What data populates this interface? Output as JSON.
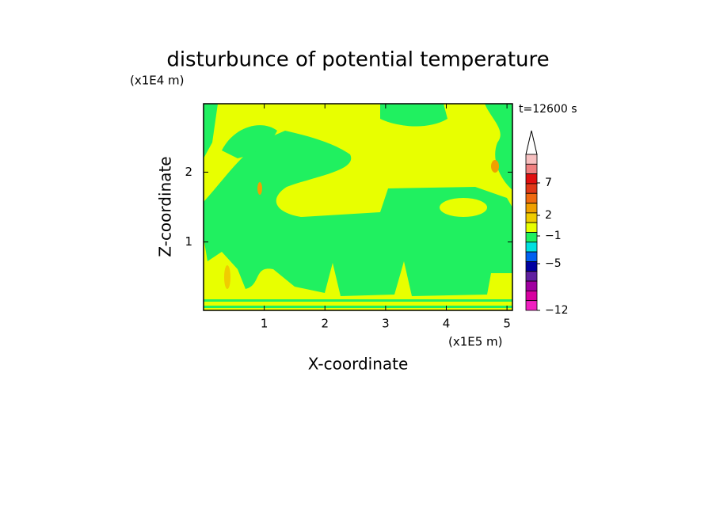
{
  "chart_data": {
    "type": "contour",
    "title": "disturbunce of potential temperature",
    "x_label": "X-coordinate",
    "y_label": "Z-coordinate",
    "x_unit": "(x1E5 m)",
    "y_unit": "(x1E4 m)",
    "time_label": "t=12600 s",
    "xlim": [
      0,
      5.09
    ],
    "xticks": [
      1,
      2,
      3,
      4,
      5
    ],
    "ylim": [
      0.02,
      2.98
    ],
    "yticks": [
      1,
      2
    ],
    "colorbar": {
      "ticks": [
        7,
        2,
        {
          "value": -1,
          "label": "−1"
        },
        {
          "value": -5,
          "label": "−5"
        },
        {
          "value": -12,
          "label": "−12"
        }
      ],
      "colors": [
        "#f7c0c0",
        "#f08080",
        "#e01010",
        "#e03818",
        "#f06a10",
        "#f0a000",
        "#f0cc00",
        "#e8ff00",
        "#20f060",
        "#00e0e0",
        "#0060f0",
        "#0000a0",
        "#6020a0",
        "#a000a0",
        "#d800a0",
        "#f020c0"
      ]
    }
  }
}
